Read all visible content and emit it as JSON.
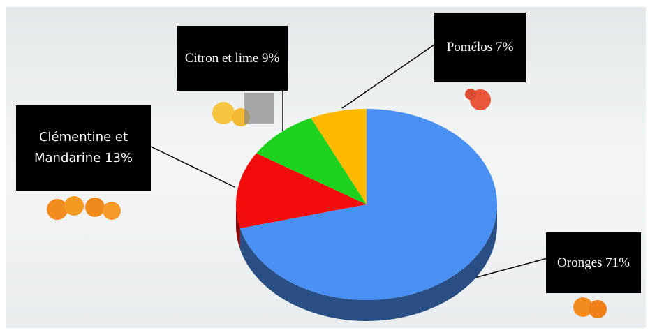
{
  "chart_data": {
    "type": "pie",
    "categories": [
      "Oronges",
      "Clémentine et Mandarine",
      "Citron et lime",
      "Pomélos"
    ],
    "values": [
      71,
      13,
      9,
      7
    ],
    "value_labels": [
      "71%",
      "13%",
      "9%",
      "7%"
    ],
    "colors": [
      "#4a8ff2",
      "#f20c0c",
      "#1fd11f",
      "#ffba00"
    ]
  }
}
